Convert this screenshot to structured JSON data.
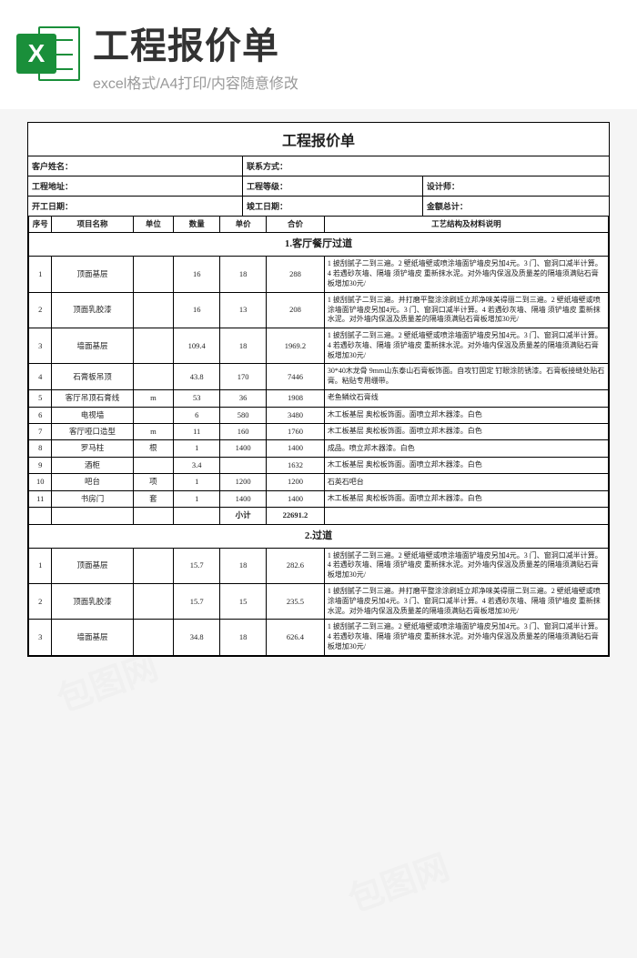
{
  "banner": {
    "icon_letter": "X",
    "title": "工程报价单",
    "subtitle": "excel格式/A4打印/内容随意修改",
    "icon_bg": "#1a8f3a"
  },
  "doc": {
    "title": "工程报价单",
    "info1": {
      "a": "客户姓名：",
      "b": "联系方式："
    },
    "info2": {
      "a": "工程地址：",
      "b": "工程等级：",
      "c": "设计师："
    },
    "info3": {
      "a": "开工日期：",
      "b": "竣工日期：",
      "c": "金额总计："
    },
    "columns": [
      "序号",
      "项目名称",
      "单位",
      "数量",
      "单价",
      "合价",
      "工艺结构及材料说明"
    ],
    "section1": {
      "title": "1.客厅餐厅过道",
      "rows": [
        {
          "idx": "1",
          "name": "顶面基层",
          "unit": "",
          "qty": "16",
          "price": "18",
          "total": "288",
          "desc": "1 披刮腻子二到三遍。2 壁纸墙壁或喷涂墙面铲墙皮另加4元。3 门、窗洞口减半计算。4 若遇砂灰墙、隔墙 须铲墙皮 重新抹水泥。对外墙内保温及质量差的隔墙须满贴石膏板增加30元/"
        },
        {
          "idx": "2",
          "name": "顶面乳胶漆",
          "unit": "",
          "qty": "16",
          "price": "13",
          "total": "208",
          "desc": "1 披刮腻子二到三遍。并打磨平整涂涂刷班立邦净味美得丽二到三遍。2 壁纸墙壁或喷涂墙面铲墙皮另加4元。3 门、窗洞口减半计算。4 若遇砂灰墙、隔墙 须铲墙皮 重新抹水泥。对外墙内保温及质量差的隔墙须满贴石膏板增加30元/"
        },
        {
          "idx": "3",
          "name": "墙面基层",
          "unit": "",
          "qty": "109.4",
          "price": "18",
          "total": "1969.2",
          "desc": "1 披刮腻子二到三遍。2 壁纸墙壁或喷涂墙面铲墙皮另加4元。3 门、窗洞口减半计算。4 若遇砂灰墙、隔墙 须铲墙皮 重新抹水泥。对外墙内保温及质量差的隔墙须满贴石膏板增加30元/"
        },
        {
          "idx": "4",
          "name": "石膏板吊顶",
          "unit": "",
          "qty": "43.8",
          "price": "170",
          "total": "7446",
          "desc": "30*40木龙骨 9mm山东泰山石膏板饰面。自攻钉固定 钉眼涂防锈漆。石膏板接缝处贴石膏。粘贴专用绷带。"
        },
        {
          "idx": "5",
          "name": "客厅吊顶石膏线",
          "unit": "m",
          "qty": "53",
          "price": "36",
          "total": "1908",
          "desc": "老鱼鳞纹石膏线"
        },
        {
          "idx": "6",
          "name": "电视墙",
          "unit": "",
          "qty": "6",
          "price": "580",
          "total": "3480",
          "desc": "木工板基层 奥松板饰面。面喷立邦木器漆。白色"
        },
        {
          "idx": "7",
          "name": "客厅哑口造型",
          "unit": "m",
          "qty": "11",
          "price": "160",
          "total": "1760",
          "desc": "木工板基层 奥松板饰面。面喷立邦木器漆。白色"
        },
        {
          "idx": "8",
          "name": "罗马柱",
          "unit": "根",
          "qty": "1",
          "price": "1400",
          "total": "1400",
          "desc": "成品。喷立邦木器漆。白色"
        },
        {
          "idx": "9",
          "name": "酒柜",
          "unit": "",
          "qty": "3.4",
          "price": "",
          "total": "1632",
          "desc": "木工板基层 奥松板饰面。面喷立邦木器漆。白色"
        },
        {
          "idx": "10",
          "name": "吧台",
          "unit": "项",
          "qty": "1",
          "price": "1200",
          "total": "1200",
          "desc": "石英石吧台"
        },
        {
          "idx": "11",
          "name": "书房门",
          "unit": "套",
          "qty": "1",
          "price": "1400",
          "total": "1400",
          "desc": "木工板基层 奥松板饰面。面喷立邦木器漆。白色"
        }
      ],
      "subtotal": {
        "label": "小计",
        "value": "22691.2"
      }
    },
    "section2": {
      "title": "2.过道",
      "rows": [
        {
          "idx": "1",
          "name": "顶面基层",
          "unit": "",
          "qty": "15.7",
          "price": "18",
          "total": "282.6",
          "desc": "1 披刮腻子二到三遍。2 壁纸墙壁或喷涂墙面铲墙皮另加4元。3 门、窗洞口减半计算。4 若遇砂灰墙、隔墙 须铲墙皮 重新抹水泥。对外墙内保温及质量差的隔墙须满贴石膏板增加30元/"
        },
        {
          "idx": "2",
          "name": "顶面乳胶漆",
          "unit": "",
          "qty": "15.7",
          "price": "15",
          "total": "235.5",
          "desc": "1 披刮腻子二到三遍。并打磨平整涂涂刷班立邦净味美得丽二到三遍。2 壁纸墙壁或喷涂墙面铲墙皮另加4元。3 门、窗洞口减半计算。4 若遇砂灰墙、隔墙 须铲墙皮 重新抹水泥。对外墙内保温及质量差的隔墙须满贴石膏板增加30元/"
        },
        {
          "idx": "3",
          "name": "墙面基层",
          "unit": "",
          "qty": "34.8",
          "price": "18",
          "total": "626.4",
          "desc": "1 披刮腻子二到三遍。2 壁纸墙壁或喷涂墙面铲墙皮另加4元。3 门、窗洞口减半计算。4 若遇砂灰墙、隔墙 须铲墙皮 重新抹水泥。对外墙内保温及质量差的隔墙须满贴石膏板增加30元/"
        }
      ]
    }
  }
}
